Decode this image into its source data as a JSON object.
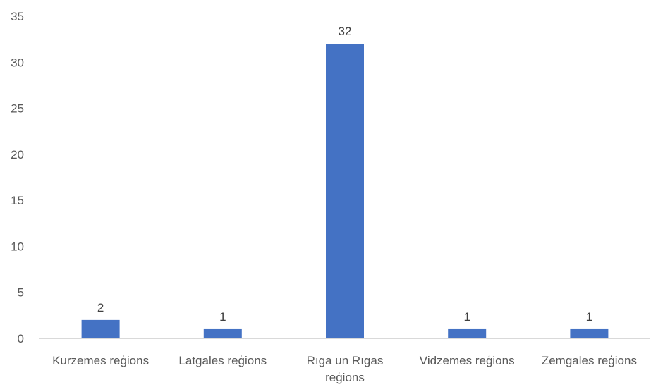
{
  "chart_data": {
    "type": "bar",
    "categories": [
      [
        "Kurzemes reģions"
      ],
      [
        "Latgales reģions"
      ],
      [
        "Rīga un Rīgas",
        "reģions"
      ],
      [
        "Vidzemes reģions"
      ],
      [
        "Zemgales reģions"
      ]
    ],
    "values": [
      2,
      1,
      32,
      1,
      1
    ],
    "data_labels": [
      "2",
      "1",
      "32",
      "1",
      "1"
    ],
    "yticks": [
      "0",
      "5",
      "10",
      "15",
      "20",
      "25",
      "30",
      "35"
    ],
    "ylim": [
      0,
      35
    ],
    "grid": false,
    "legend": "none",
    "colors": {
      "bar": "#4472C4",
      "axis": "#D9D9D9"
    }
  }
}
